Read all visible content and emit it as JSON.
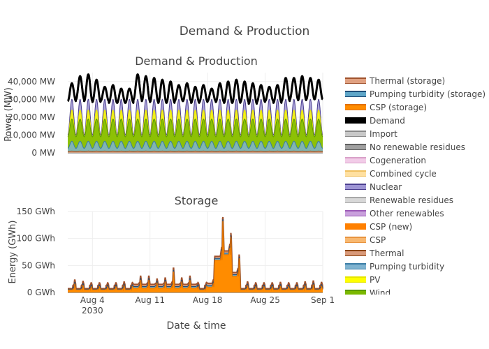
{
  "figure": {
    "title": "Demand & Production",
    "xlabel": "Date & time"
  },
  "legend": [
    {
      "label": "Thermal (storage)",
      "color": "#e0a080",
      "line": "#a0522d"
    },
    {
      "label": "Pumping turbidity (storage)",
      "color": "#5fa6c8",
      "line": "#1f4e79"
    },
    {
      "label": "CSP (storage)",
      "color": "#ff8c00",
      "line": "#e07000"
    },
    {
      "label": "Demand",
      "color": "#000000",
      "line": "#000000"
    },
    {
      "label": "Import",
      "color": "#c8c8c8",
      "line": "#8a8a8a"
    },
    {
      "label": "No renewable residues",
      "color": "#a0a0a0",
      "line": "#606060"
    },
    {
      "label": "Cogeneration",
      "color": "#f2cce8",
      "line": "#d8a0c8"
    },
    {
      "label": "Combined cycle",
      "color": "#ffe0a0",
      "line": "#f0c060"
    },
    {
      "label": "Nuclear",
      "color": "#9d94d4",
      "line": "#4b3f8f"
    },
    {
      "label": "Renewable residues",
      "color": "#d8d8d8",
      "line": "#a8a8a8"
    },
    {
      "label": "Other renewables",
      "color": "#c9a0dc",
      "line": "#9b59b6"
    },
    {
      "label": "CSP (new)",
      "color": "#ff8000",
      "line": "#ff8000"
    },
    {
      "label": "CSP",
      "color": "#f8b870",
      "line": "#e89440"
    },
    {
      "label": "Thermal",
      "color": "#d99a7a",
      "line": "#8b4513"
    },
    {
      "label": "Pumping turbidity",
      "color": "#7fb3d0",
      "line": "#3a7ca5"
    },
    {
      "label": "PV",
      "color": "#ffff00",
      "line": "#e6e600"
    },
    {
      "label": "Wind",
      "color": "#7ab800",
      "line": "#5a9a00"
    }
  ],
  "chart_data": [
    {
      "type": "area",
      "title": "Demand & Production",
      "xlabel": "",
      "ylabel": "Power (MW)",
      "ylim": [
        0,
        45000
      ],
      "yticks": [
        0,
        10000,
        20000,
        30000,
        40000
      ],
      "ytick_labels": [
        "0 MW",
        "10,000 MW",
        "20,000 MW",
        "30,000 MW",
        "40,000 MW"
      ],
      "xrange": [
        "2030-08-01",
        "2030-09-01"
      ],
      "xticks": [
        "2030-08-04",
        "2030-08-11",
        "2030-08-18",
        "2030-08-25",
        "2030-09-01"
      ],
      "xtick_labels": [
        "Aug 4",
        "Aug 11",
        "Aug 18",
        "Aug 25",
        "Sep 1"
      ],
      "x": [
        "2030-08-01",
        "2030-08-02",
        "2030-08-03",
        "2030-08-04",
        "2030-08-05",
        "2030-08-06",
        "2030-08-07",
        "2030-08-08",
        "2030-08-09",
        "2030-08-10",
        "2030-08-11",
        "2030-08-12",
        "2030-08-13",
        "2030-08-14",
        "2030-08-15",
        "2030-08-16",
        "2030-08-17",
        "2030-08-18",
        "2030-08-19",
        "2030-08-20",
        "2030-08-21",
        "2030-08-22",
        "2030-08-23",
        "2030-08-24",
        "2030-08-25",
        "2030-08-26",
        "2030-08-27",
        "2030-08-28",
        "2030-08-29",
        "2030-08-30",
        "2030-08-31"
      ],
      "daily_cycle": "stacked production and demand oscillate between a night minimum and a daytime maximum each day",
      "series": [
        {
          "name": "Thermal",
          "min": 800,
          "max": 1000
        },
        {
          "name": "Pumping turbidity",
          "min": 2500,
          "max": 6500
        },
        {
          "name": "Wind",
          "min": 9000,
          "max": 19000
        },
        {
          "name": "PV",
          "min": 9000,
          "max": 24000
        },
        {
          "name": "Nuclear",
          "min": 10000,
          "max": 30000
        },
        {
          "name": "Demand",
          "min": [
            29000,
            30000,
            29000,
            28500,
            29000,
            28000,
            28000,
            28000,
            30000,
            29000,
            28500,
            28000,
            28000,
            29000,
            29000,
            28000,
            28500,
            29000,
            28500,
            28000,
            28000,
            28500,
            27500,
            28500,
            29000,
            28000,
            29000,
            30000,
            29500,
            30000,
            30000
          ],
          "max": [
            39000,
            43000,
            44000,
            41000,
            37000,
            38000,
            36000,
            36000,
            44000,
            43000,
            42000,
            41000,
            40000,
            38000,
            39000,
            37000,
            38000,
            36000,
            39000,
            40000,
            41000,
            40000,
            39000,
            38000,
            37000,
            38000,
            42000,
            42000,
            43000,
            42000,
            41000
          ]
        }
      ]
    },
    {
      "type": "area",
      "title": "Storage",
      "xlabel": "Date & time",
      "ylabel": "Energy (GWh)",
      "ylim": [
        0,
        150
      ],
      "yticks": [
        0,
        50,
        100,
        150
      ],
      "ytick_labels": [
        "0 GWh",
        "50 GWh",
        "100 GWh",
        "150 GWh"
      ],
      "xrange": [
        "2030-08-01",
        "2030-09-01"
      ],
      "xticks": [
        "2030-08-04",
        "2030-08-11",
        "2030-08-18",
        "2030-08-25",
        "2030-09-01"
      ],
      "xtick_labels": [
        "Aug 4\n2030",
        "Aug 11",
        "Aug 18",
        "Aug 25",
        "Sep 1"
      ],
      "x": [
        "2030-08-01",
        "2030-08-02",
        "2030-08-03",
        "2030-08-04",
        "2030-08-05",
        "2030-08-06",
        "2030-08-07",
        "2030-08-08",
        "2030-08-09",
        "2030-08-10",
        "2030-08-11",
        "2030-08-12",
        "2030-08-13",
        "2030-08-14",
        "2030-08-15",
        "2030-08-16",
        "2030-08-17",
        "2030-08-18",
        "2030-08-19",
        "2030-08-20",
        "2030-08-21",
        "2030-08-22",
        "2030-08-23",
        "2030-08-24",
        "2030-08-25",
        "2030-08-26",
        "2030-08-27",
        "2030-08-28",
        "2030-08-29",
        "2030-08-30",
        "2030-08-31"
      ],
      "series": [
        {
          "name": "CSP (storage)",
          "peaks": [
            18,
            15,
            12,
            12,
            12,
            12,
            14,
            12,
            26,
            26,
            20,
            22,
            44,
            22,
            26,
            12,
            12,
            60,
            145,
            110,
            70,
            14,
            12,
            12,
            12,
            13,
            12,
            12,
            14,
            16,
            13
          ],
          "troughs": [
            5,
            5,
            5,
            5,
            5,
            5,
            5,
            5,
            8,
            8,
            8,
            8,
            8,
            8,
            8,
            8,
            5,
            10,
            60,
            70,
            30,
            5,
            5,
            5,
            5,
            5,
            5,
            5,
            5,
            5,
            5
          ]
        },
        {
          "name": "Pumping turbidity (storage)",
          "peak_extra": 3
        },
        {
          "name": "Thermal (storage)",
          "peak_extra": 4
        }
      ]
    }
  ]
}
